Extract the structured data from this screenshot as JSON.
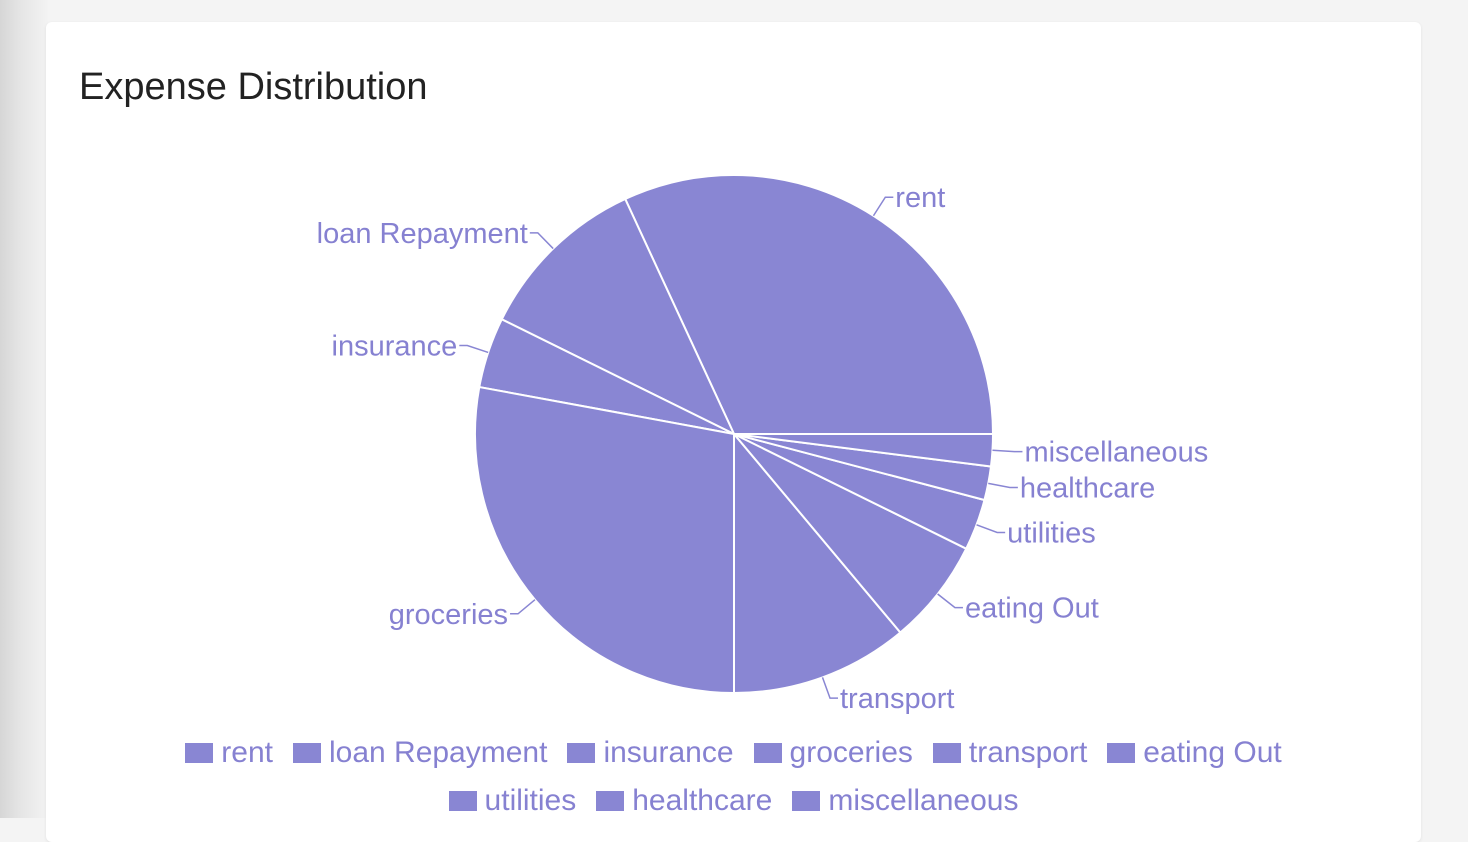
{
  "card": {
    "title": "Expense Distribution"
  },
  "colors": {
    "slice": "#8986d3",
    "label": "#8681d1",
    "border": "#ffffff",
    "leader": "#8986d3"
  },
  "chart_data": {
    "type": "pie",
    "title": "Expense Distribution",
    "start_angle_deg": 0,
    "direction": "counterclockwise",
    "legend_position": "bottom",
    "slices": [
      {
        "label": "rent",
        "value": 31.9
      },
      {
        "label": "loan Repayment",
        "value": 10.8
      },
      {
        "label": "insurance",
        "value": 4.4
      },
      {
        "label": "groceries",
        "value": 27.9
      },
      {
        "label": "transport",
        "value": 11.1
      },
      {
        "label": "eating Out",
        "value": 6.6
      },
      {
        "label": "utilities",
        "value": 3.2
      },
      {
        "label": "healthcare",
        "value": 2.1
      },
      {
        "label": "miscellaneous",
        "value": 2.0
      }
    ]
  }
}
